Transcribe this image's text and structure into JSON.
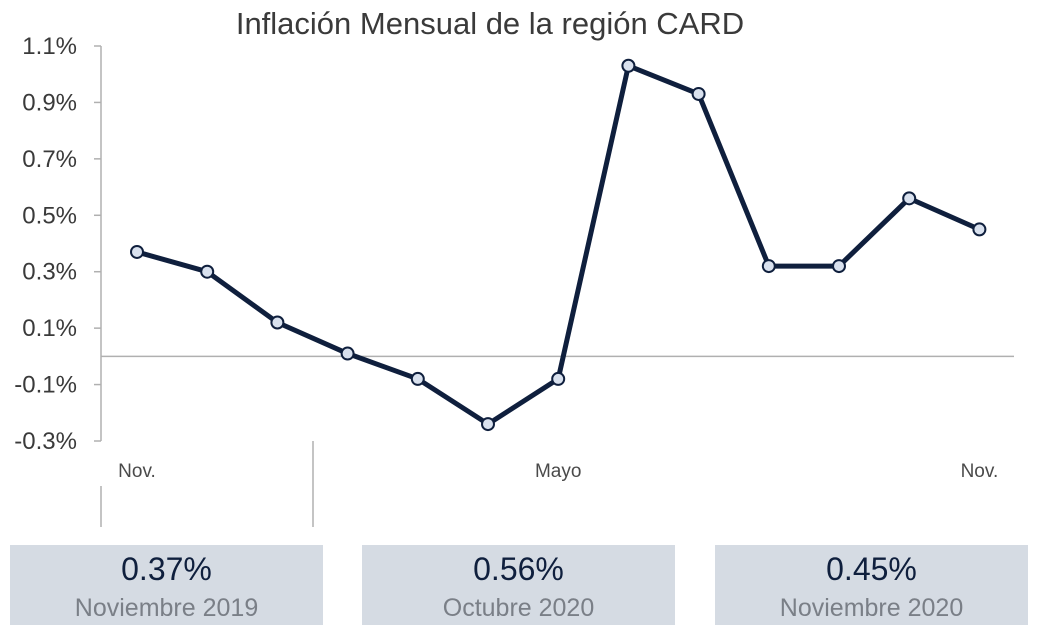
{
  "chart_data": {
    "type": "line",
    "title": "Inflación Mensual de la región CARD",
    "xlabel": "",
    "ylabel": "",
    "ylim": [
      -0.3,
      1.1
    ],
    "yticks": [
      "1.1%",
      "0.9%",
      "0.7%",
      "0.5%",
      "0.3%",
      "0.1%",
      "-0.1%",
      "-0.3%"
    ],
    "x_tick_labels": [
      {
        "index": 0,
        "label": "Nov."
      },
      {
        "index": 6,
        "label": "Mayo"
      },
      {
        "index": 12,
        "label": "Nov."
      }
    ],
    "series": [
      {
        "values": [
          0.37,
          0.3,
          0.12,
          0.01,
          -0.08,
          -0.24,
          -0.08,
          1.03,
          0.93,
          0.32,
          0.32,
          0.56,
          0.45
        ],
        "color": "#0f1f3d"
      }
    ],
    "zero_line": true,
    "grid": false
  },
  "cards": [
    {
      "value": "0.37%",
      "label": "Noviembre 2019"
    },
    {
      "value": "0.56%",
      "label": "Octubre 2020"
    },
    {
      "value": "0.45%",
      "label": "Noviembre 2020"
    }
  ],
  "colors": {
    "line": "#0f1f3d",
    "marker_fill": "#d9e1ee",
    "axis": "#b0b0b0",
    "card_bg": "#d5dbe3"
  }
}
